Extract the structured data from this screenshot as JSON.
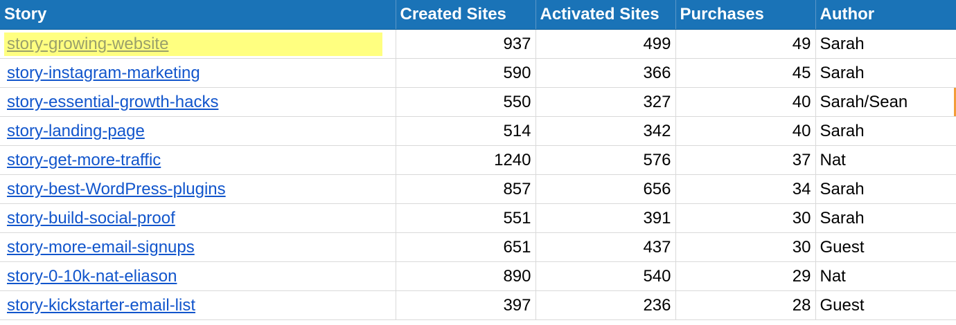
{
  "table": {
    "columns": [
      "Story",
      "Created Sites",
      "Activated Sites",
      "Purchases",
      "Author"
    ],
    "rows": [
      {
        "story": "story-growing-website",
        "created": "937",
        "activated": "499",
        "purchases": "49",
        "author": "Sarah",
        "highlighted": true
      },
      {
        "story": "story-instagram-marketing",
        "created": "590",
        "activated": "366",
        "purchases": "45",
        "author": "Sarah"
      },
      {
        "story": "story-essential-growth-hacks",
        "created": "550",
        "activated": "327",
        "purchases": "40",
        "author": "Sarah/Sean"
      },
      {
        "story": "story-landing-page",
        "created": "514",
        "activated": "342",
        "purchases": "40",
        "author": "Sarah"
      },
      {
        "story": "story-get-more-traffic",
        "created": "1240",
        "activated": "576",
        "purchases": "37",
        "author": "Nat"
      },
      {
        "story": "story-best-WordPress-plugins",
        "created": "857",
        "activated": "656",
        "purchases": "34",
        "author": "Sarah"
      },
      {
        "story": "story-build-social-proof",
        "created": "551",
        "activated": "391",
        "purchases": "30",
        "author": "Sarah"
      },
      {
        "story": "story-more-email-signups",
        "created": "651",
        "activated": "437",
        "purchases": "30",
        "author": "Guest"
      },
      {
        "story": "story-0-10k-nat-eliason",
        "created": "890",
        "activated": "540",
        "purchases": "29",
        "author": "Nat"
      },
      {
        "story": "story-kickstarter-email-list",
        "created": "397",
        "activated": "236",
        "purchases": "28",
        "author": "Guest"
      }
    ]
  },
  "colors": {
    "header_bg": "#1a73b7",
    "header_text": "#ffffff",
    "link": "#1155cc",
    "highlight": "#ffff80",
    "gridline": "#d9d9d9"
  }
}
